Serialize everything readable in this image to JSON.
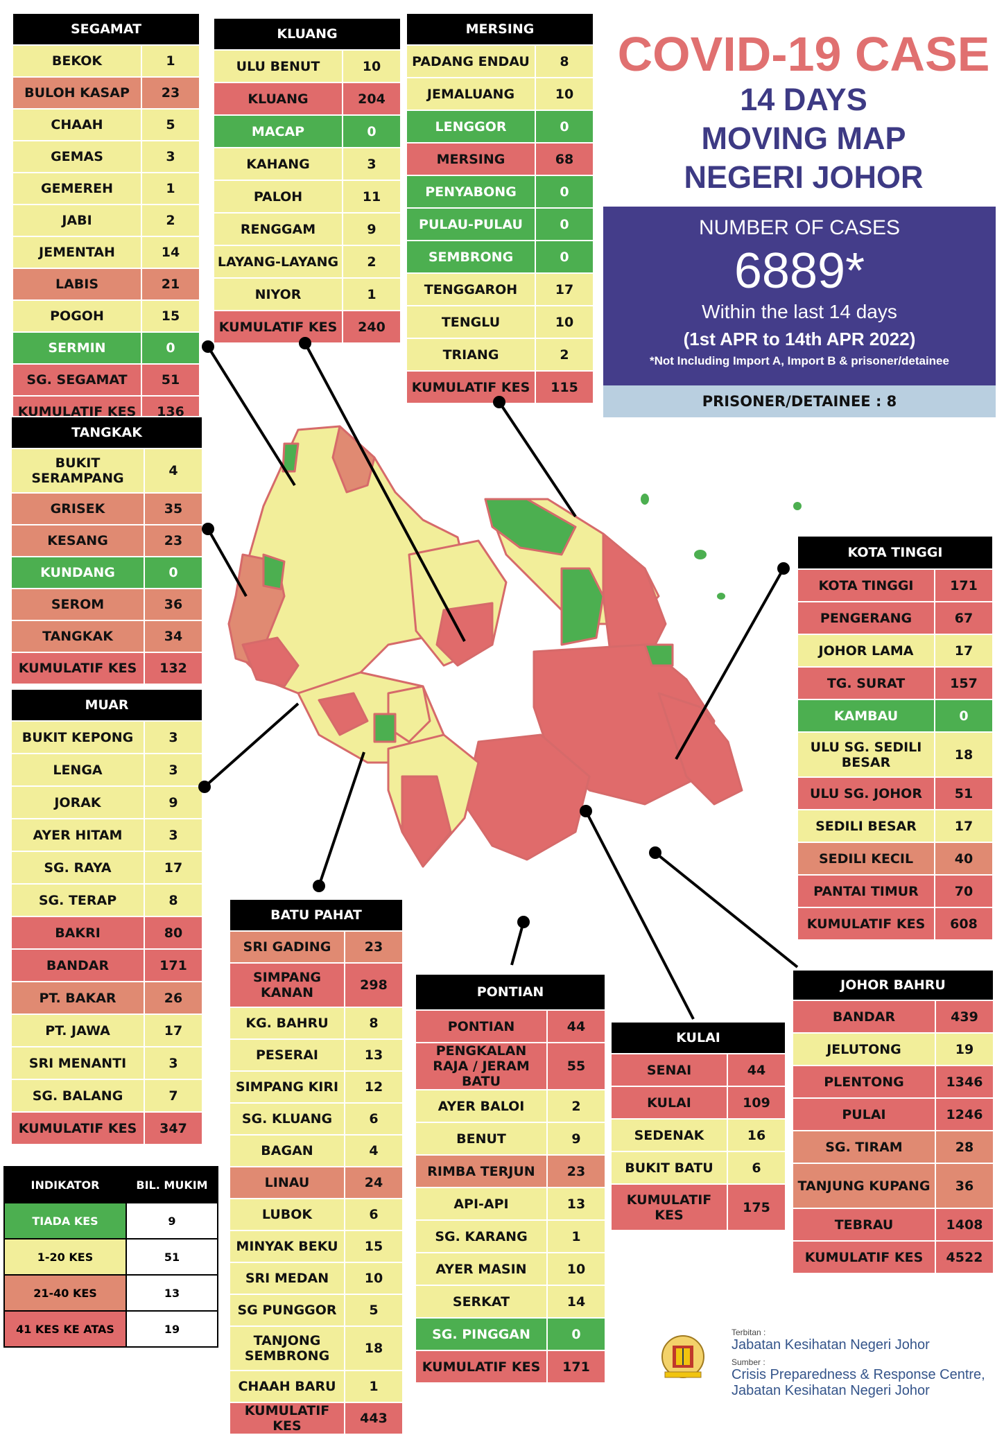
{
  "title": {
    "line1": "COVID-19 CASE",
    "line2": "14 DAYS",
    "line3": "MOVING MAP",
    "line4": "NEGERI JOHOR"
  },
  "summary": {
    "label": "NUMBER OF CASES",
    "number": "6889*",
    "within": "Within the last 14 days",
    "range": "(1st APR to 14th APR 2022)",
    "note": "*Not Including Import A, Import B & prisoner/detainee",
    "prisoner": "PRISONER/DETAINEE : 8"
  },
  "colors": {
    "green": "#4caf50",
    "yellow": "#f2ee9a",
    "orange": "#e08a72",
    "red": "#e06b6b",
    "banner": "#443d8a",
    "title": "#e07070"
  },
  "districts": {
    "segamat": {
      "name": "SEGAMAT",
      "rows": [
        {
          "n": "BEKOK",
          "v": "1",
          "c": "y"
        },
        {
          "n": "BULOH KASAP",
          "v": "23",
          "c": "o"
        },
        {
          "n": "CHAAH",
          "v": "5",
          "c": "y"
        },
        {
          "n": "GEMAS",
          "v": "3",
          "c": "y"
        },
        {
          "n": "GEMEREH",
          "v": "1",
          "c": "y"
        },
        {
          "n": "JABI",
          "v": "2",
          "c": "y"
        },
        {
          "n": "JEMENTAH",
          "v": "14",
          "c": "y"
        },
        {
          "n": "LABIS",
          "v": "21",
          "c": "o"
        },
        {
          "n": "POGOH",
          "v": "15",
          "c": "y"
        },
        {
          "n": "SERMIN",
          "v": "0",
          "c": "g"
        },
        {
          "n": "SG. SEGAMAT",
          "v": "51",
          "c": "r"
        }
      ],
      "total_label": "KUMULATIF KES",
      "total": "136"
    },
    "kluang": {
      "name": "KLUANG",
      "rows": [
        {
          "n": "ULU BENUT",
          "v": "10",
          "c": "y"
        },
        {
          "n": "KLUANG",
          "v": "204",
          "c": "r"
        },
        {
          "n": "MACAP",
          "v": "0",
          "c": "g"
        },
        {
          "n": "KAHANG",
          "v": "3",
          "c": "y"
        },
        {
          "n": "PALOH",
          "v": "11",
          "c": "y"
        },
        {
          "n": "RENGGAM",
          "v": "9",
          "c": "y"
        },
        {
          "n": "LAYANG-LAYANG",
          "v": "2",
          "c": "y"
        },
        {
          "n": "NIYOR",
          "v": "1",
          "c": "y"
        }
      ],
      "total_label": "KUMULATIF KES",
      "total": "240"
    },
    "mersing": {
      "name": "MERSING",
      "rows": [
        {
          "n": "PADANG ENDAU",
          "v": "8",
          "c": "y"
        },
        {
          "n": "JEMALUANG",
          "v": "10",
          "c": "y"
        },
        {
          "n": "LENGGOR",
          "v": "0",
          "c": "g"
        },
        {
          "n": "MERSING",
          "v": "68",
          "c": "r"
        },
        {
          "n": "PENYABONG",
          "v": "0",
          "c": "g"
        },
        {
          "n": "PULAU-PULAU",
          "v": "0",
          "c": "g"
        },
        {
          "n": "SEMBRONG",
          "v": "0",
          "c": "g"
        },
        {
          "n": "TENGGAROH",
          "v": "17",
          "c": "y"
        },
        {
          "n": "TENGLU",
          "v": "10",
          "c": "y"
        },
        {
          "n": "TRIANG",
          "v": "2",
          "c": "y"
        }
      ],
      "total_label": "KUMULATIF KES",
      "total": "115"
    },
    "tangkak": {
      "name": "TANGKAK",
      "rows": [
        {
          "n": "BUKIT SERAMPANG",
          "v": "4",
          "c": "y"
        },
        {
          "n": "GRISEK",
          "v": "35",
          "c": "o"
        },
        {
          "n": "KESANG",
          "v": "23",
          "c": "o"
        },
        {
          "n": "KUNDANG",
          "v": "0",
          "c": "g"
        },
        {
          "n": "SEROM",
          "v": "36",
          "c": "o"
        },
        {
          "n": "TANGKAK",
          "v": "34",
          "c": "o"
        }
      ],
      "total_label": "KUMULATIF KES",
      "total": "132"
    },
    "muar": {
      "name": "MUAR",
      "rows": [
        {
          "n": "BUKIT KEPONG",
          "v": "3",
          "c": "y"
        },
        {
          "n": "LENGA",
          "v": "3",
          "c": "y"
        },
        {
          "n": "JORAK",
          "v": "9",
          "c": "y"
        },
        {
          "n": "AYER HITAM",
          "v": "3",
          "c": "y"
        },
        {
          "n": "SG. RAYA",
          "v": "17",
          "c": "y"
        },
        {
          "n": "SG. TERAP",
          "v": "8",
          "c": "y"
        },
        {
          "n": "BAKRI",
          "v": "80",
          "c": "r"
        },
        {
          "n": "BANDAR",
          "v": "171",
          "c": "r"
        },
        {
          "n": "PT. BAKAR",
          "v": "26",
          "c": "o"
        },
        {
          "n": "PT. JAWA",
          "v": "17",
          "c": "y"
        },
        {
          "n": "SRI MENANTI",
          "v": "3",
          "c": "y"
        },
        {
          "n": "SG. BALANG",
          "v": "7",
          "c": "y"
        }
      ],
      "total_label": "KUMULATIF KES",
      "total": "347"
    },
    "batu_pahat": {
      "name": "BATU PAHAT",
      "rows": [
        {
          "n": "SRI GADING",
          "v": "23",
          "c": "o"
        },
        {
          "n": "SIMPANG KANAN",
          "v": "298",
          "c": "r"
        },
        {
          "n": "KG. BAHRU",
          "v": "8",
          "c": "y"
        },
        {
          "n": "PESERAI",
          "v": "13",
          "c": "y"
        },
        {
          "n": "SIMPANG KIRI",
          "v": "12",
          "c": "y"
        },
        {
          "n": "SG. KLUANG",
          "v": "6",
          "c": "y"
        },
        {
          "n": "BAGAN",
          "v": "4",
          "c": "y"
        },
        {
          "n": "LINAU",
          "v": "24",
          "c": "o"
        },
        {
          "n": "LUBOK",
          "v": "6",
          "c": "y"
        },
        {
          "n": "MINYAK BEKU",
          "v": "15",
          "c": "y"
        },
        {
          "n": "SRI MEDAN",
          "v": "10",
          "c": "y"
        },
        {
          "n": "SG PUNGGOR",
          "v": "5",
          "c": "y"
        },
        {
          "n": "TANJONG SEMBRONG",
          "v": "18",
          "c": "y"
        },
        {
          "n": "CHAAH BARU",
          "v": "1",
          "c": "y"
        }
      ],
      "total_label": "KUMULATIF KES",
      "total": "443"
    },
    "pontian": {
      "name": "PONTIAN",
      "rows": [
        {
          "n": "PONTIAN",
          "v": "44",
          "c": "r"
        },
        {
          "n": "PENGKALAN RAJA / JERAM BATU",
          "v": "55",
          "c": "r"
        },
        {
          "n": "AYER BALOI",
          "v": "2",
          "c": "y"
        },
        {
          "n": "BENUT",
          "v": "9",
          "c": "y"
        },
        {
          "n": "RIMBA TERJUN",
          "v": "23",
          "c": "o"
        },
        {
          "n": "API-API",
          "v": "13",
          "c": "y"
        },
        {
          "n": "SG. KARANG",
          "v": "1",
          "c": "y"
        },
        {
          "n": "AYER MASIN",
          "v": "10",
          "c": "y"
        },
        {
          "n": "SERKAT",
          "v": "14",
          "c": "y"
        },
        {
          "n": "SG. PINGGAN",
          "v": "0",
          "c": "g"
        }
      ],
      "total_label": "KUMULATIF KES",
      "total": "171"
    },
    "kulai": {
      "name": "KULAI",
      "rows": [
        {
          "n": "SENAI",
          "v": "44",
          "c": "r"
        },
        {
          "n": "KULAI",
          "v": "109",
          "c": "r"
        },
        {
          "n": "SEDENAK",
          "v": "16",
          "c": "y"
        },
        {
          "n": "BUKIT BATU",
          "v": "6",
          "c": "y"
        }
      ],
      "total_label": "KUMULATIF KES",
      "total": "175"
    },
    "kota_tinggi": {
      "name": "KOTA TINGGI",
      "rows": [
        {
          "n": "KOTA TINGGI",
          "v": "171",
          "c": "r"
        },
        {
          "n": "PENGERANG",
          "v": "67",
          "c": "r"
        },
        {
          "n": "JOHOR LAMA",
          "v": "17",
          "c": "y"
        },
        {
          "n": "TG. SURAT",
          "v": "157",
          "c": "r"
        },
        {
          "n": "KAMBAU",
          "v": "0",
          "c": "g"
        },
        {
          "n": "ULU SG. SEDILI BESAR",
          "v": "18",
          "c": "y"
        },
        {
          "n": "ULU SG. JOHOR",
          "v": "51",
          "c": "r"
        },
        {
          "n": "SEDILI BESAR",
          "v": "17",
          "c": "y"
        },
        {
          "n": "SEDILI KECIL",
          "v": "40",
          "c": "o"
        },
        {
          "n": "PANTAI TIMUR",
          "v": "70",
          "c": "r"
        }
      ],
      "total_label": "KUMULATIF KES",
      "total": "608"
    },
    "johor_bahru": {
      "name": "JOHOR BAHRU",
      "rows": [
        {
          "n": "BANDAR",
          "v": "439",
          "c": "r"
        },
        {
          "n": "JELUTONG",
          "v": "19",
          "c": "y"
        },
        {
          "n": "PLENTONG",
          "v": "1346",
          "c": "r"
        },
        {
          "n": "PULAI",
          "v": "1246",
          "c": "r"
        },
        {
          "n": "SG. TIRAM",
          "v": "28",
          "c": "o"
        },
        {
          "n": "TANJUNG KUPANG",
          "v": "36",
          "c": "o"
        },
        {
          "n": "TEBRAU",
          "v": "1408",
          "c": "r"
        }
      ],
      "total_label": "KUMULATIF KES",
      "total": "4522"
    }
  },
  "indicator": {
    "header_left": "INDIKATOR",
    "header_right": "BIL. MUKIM",
    "rows": [
      {
        "label": "TIADA KES",
        "count": "9",
        "c": "g"
      },
      {
        "label": "1-20 KES",
        "count": "51",
        "c": "y"
      },
      {
        "label": "21-40 KES",
        "count": "13",
        "c": "o"
      },
      {
        "label": "41 KES KE ATAS",
        "count": "19",
        "c": "r"
      }
    ]
  },
  "footer": {
    "terbitan_label": "Terbitan :",
    "terbitan": "Jabatan Kesihatan Negeri Johor",
    "sumber_label": "Sumber :",
    "sumber_1": "Crisis Preparedness & Response Centre,",
    "sumber_2": "Jabatan Kesihatan Negeri Johor"
  }
}
